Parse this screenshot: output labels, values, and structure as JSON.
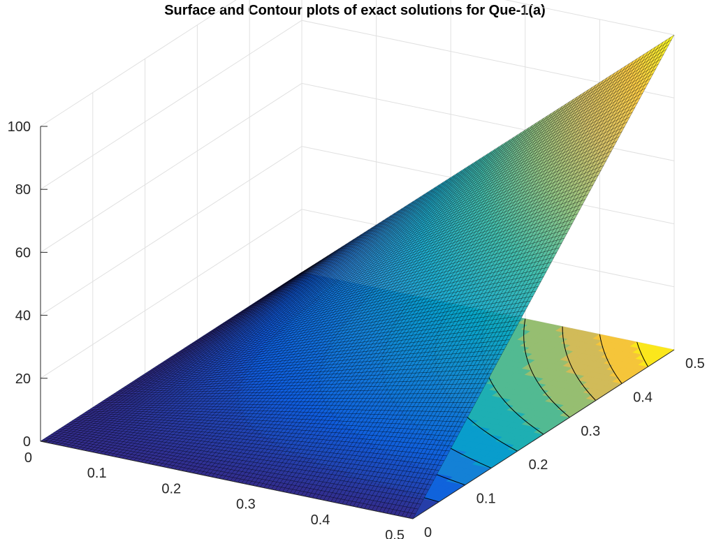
{
  "chart_data": {
    "type": "surface",
    "title": "Surface and Contour plots of exact solutions for Que-1(a)",
    "xlabel": "",
    "ylabel": "",
    "zlabel": "",
    "xlim": [
      0,
      0.5
    ],
    "ylim": [
      0,
      0.5
    ],
    "zlim": [
      0,
      100
    ],
    "x_ticks": [
      "0",
      "0.1",
      "0.2",
      "0.3",
      "0.4",
      "0.5"
    ],
    "y_ticks": [
      "0",
      "0.1",
      "0.2",
      "0.3",
      "0.4",
      "0.5"
    ],
    "z_ticks": [
      "0",
      "20",
      "40",
      "60",
      "80",
      "100"
    ],
    "grid": true,
    "colormap": "parula",
    "surface_description": "u(x,y) = 400*x*y, rising from 0 along x=0 and y=0 to 100 at x=0.5, y=0.5",
    "surface_samples": {
      "x": [
        0,
        0.1,
        0.2,
        0.3,
        0.4,
        0.5
      ],
      "y": [
        0,
        0.1,
        0.2,
        0.3,
        0.4,
        0.5
      ],
      "z": [
        [
          0,
          0,
          0,
          0,
          0,
          0
        ],
        [
          0,
          4,
          8,
          12,
          16,
          20
        ],
        [
          0,
          8,
          16,
          24,
          32,
          40
        ],
        [
          0,
          12,
          24,
          36,
          48,
          60
        ],
        [
          0,
          16,
          32,
          48,
          64,
          80
        ],
        [
          0,
          20,
          40,
          60,
          80,
          100
        ]
      ]
    },
    "contour_levels": [
      10,
      20,
      30,
      40,
      50,
      60,
      70,
      80,
      90
    ],
    "colors": [
      "#352a87",
      "#0f5cdd",
      "#1481d6",
      "#06a4ca",
      "#2eb7a4",
      "#87bf77",
      "#d1bb59",
      "#fec832",
      "#f9fb0e"
    ]
  }
}
